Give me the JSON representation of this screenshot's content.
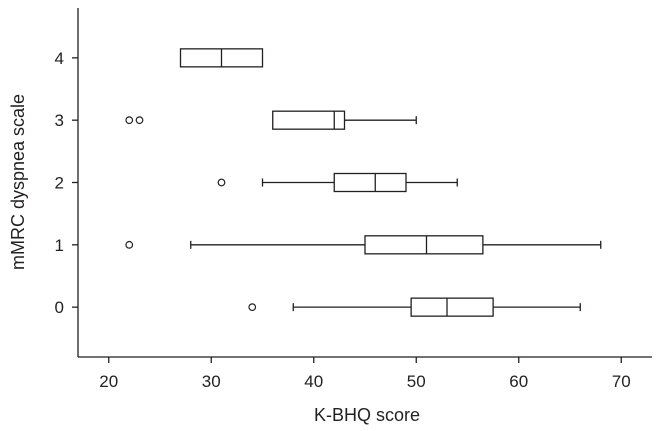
{
  "chart_data": {
    "type": "boxplot",
    "orientation": "horizontal",
    "xlabel": "K-BHQ score",
    "ylabel": "mMRC dyspnea scale",
    "xlim": [
      17,
      73
    ],
    "x_ticks": [
      20,
      30,
      40,
      50,
      60,
      70
    ],
    "ylim": [
      -0.8,
      4.8
    ],
    "y_ticks": [
      0,
      1,
      2,
      3,
      4
    ],
    "grid": false,
    "categories": [
      "0",
      "1",
      "2",
      "3",
      "4"
    ],
    "boxes": [
      {
        "category": "0",
        "whisker_low": 38,
        "q1": 49.5,
        "median": 53,
        "q3": 57.5,
        "whisker_high": 66,
        "outliers": [
          34
        ]
      },
      {
        "category": "1",
        "whisker_low": 28,
        "q1": 45,
        "median": 51,
        "q3": 56.5,
        "whisker_high": 68,
        "outliers": [
          22
        ]
      },
      {
        "category": "2",
        "whisker_low": 35,
        "q1": 42,
        "median": 46,
        "q3": 49,
        "whisker_high": 54,
        "outliers": [
          31
        ]
      },
      {
        "category": "3",
        "whisker_low": 36,
        "q1": 36,
        "median": 42,
        "q3": 43,
        "whisker_high": 50,
        "outliers": [
          22,
          23
        ]
      },
      {
        "category": "4",
        "whisker_low": 27,
        "q1": 27,
        "median": 31,
        "q3": 35,
        "whisker_high": 35,
        "outliers": []
      }
    ]
  }
}
